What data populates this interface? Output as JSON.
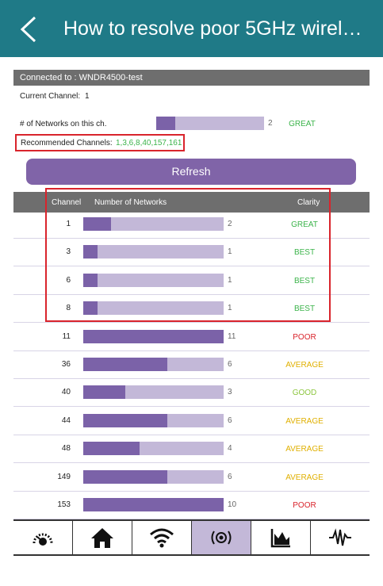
{
  "header": {
    "title": "How to resolve poor 5GHz wirel…"
  },
  "info": {
    "connected_label": "Connected to : WNDR4500-test",
    "current_channel_label": "Current Channel:",
    "current_channel_value": "1",
    "networks_label": "# of Networks on this ch.",
    "networks_value": "2",
    "networks_fraction": 0.18,
    "networks_clarity": "GREAT",
    "recommended_label": "Recommended Channels:",
    "recommended_value": "1,3,6,8,40,157,161"
  },
  "refresh_label": "Refresh",
  "table": {
    "headers": {
      "channel": "Channel",
      "networks": "Number of Networks",
      "clarity": "Clarity"
    },
    "rows": [
      {
        "channel": "1",
        "count": "2",
        "fraction": 0.2,
        "clarity": "GREAT",
        "color": "#3cb44b"
      },
      {
        "channel": "3",
        "count": "1",
        "fraction": 0.1,
        "clarity": "BEST",
        "color": "#3cb44b"
      },
      {
        "channel": "6",
        "count": "1",
        "fraction": 0.1,
        "clarity": "BEST",
        "color": "#3cb44b"
      },
      {
        "channel": "8",
        "count": "1",
        "fraction": 0.1,
        "clarity": "BEST",
        "color": "#3cb44b"
      },
      {
        "channel": "11",
        "count": "11",
        "fraction": 1.0,
        "clarity": "POOR",
        "color": "#d9242c"
      },
      {
        "channel": "36",
        "count": "6",
        "fraction": 0.6,
        "clarity": "AVERAGE",
        "color": "#e0b000"
      },
      {
        "channel": "40",
        "count": "3",
        "fraction": 0.3,
        "clarity": "GOOD",
        "color": "#8dc63f"
      },
      {
        "channel": "44",
        "count": "6",
        "fraction": 0.6,
        "clarity": "AVERAGE",
        "color": "#e0b000"
      },
      {
        "channel": "48",
        "count": "4",
        "fraction": 0.4,
        "clarity": "AVERAGE",
        "color": "#e0b000"
      },
      {
        "channel": "149",
        "count": "6",
        "fraction": 0.6,
        "clarity": "AVERAGE",
        "color": "#e0b000"
      },
      {
        "channel": "153",
        "count": "10",
        "fraction": 1.0,
        "clarity": "POOR",
        "color": "#d9242c"
      }
    ]
  },
  "nav": [
    {
      "icon": "speedometer-icon"
    },
    {
      "icon": "home-icon"
    },
    {
      "icon": "wifi-icon"
    },
    {
      "icon": "radar-icon",
      "active": true
    },
    {
      "icon": "chart-icon"
    },
    {
      "icon": "waveform-icon"
    }
  ],
  "colors": {
    "accent": "#7b62a8",
    "header": "#1f7a87"
  }
}
